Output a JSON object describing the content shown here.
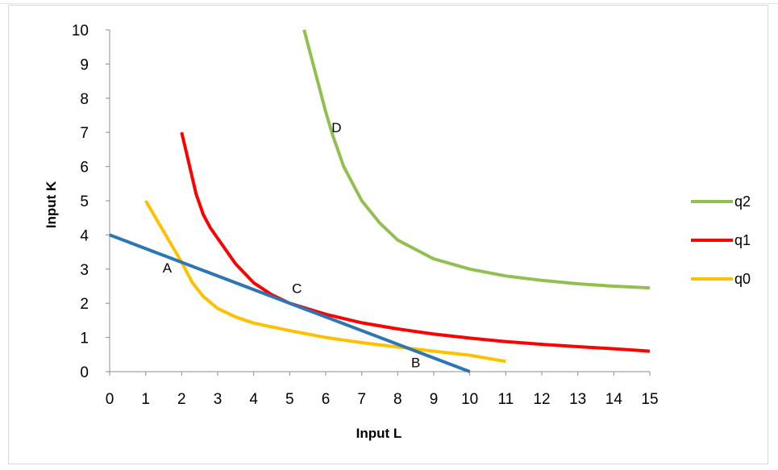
{
  "chart_data": {
    "type": "line",
    "title": "",
    "xlabel": "Input L",
    "ylabel": "Input K",
    "xlim": [
      0,
      15
    ],
    "ylim": [
      0,
      10
    ],
    "x_ticks": [
      "0",
      "1",
      "2",
      "3",
      "4",
      "5",
      "6",
      "7",
      "8",
      "9",
      "10",
      "11",
      "12",
      "13",
      "14",
      "15"
    ],
    "y_ticks": [
      "0",
      "1",
      "2",
      "3",
      "4",
      "5",
      "6",
      "7",
      "8",
      "9",
      "10"
    ],
    "grid": false,
    "legend_position": "right",
    "series": [
      {
        "name": "q2",
        "color": "#92c050",
        "points": [
          [
            5.4,
            10
          ],
          [
            5.6,
            9.2
          ],
          [
            5.8,
            8.4
          ],
          [
            6.0,
            7.6
          ],
          [
            6.2,
            6.9
          ],
          [
            6.5,
            6.0
          ],
          [
            7.0,
            5.0
          ],
          [
            7.5,
            4.35
          ],
          [
            8.0,
            3.85
          ],
          [
            9.0,
            3.3
          ],
          [
            10.0,
            3.0
          ],
          [
            11.0,
            2.8
          ],
          [
            12.0,
            2.67
          ],
          [
            13.0,
            2.57
          ],
          [
            14.0,
            2.5
          ],
          [
            15.0,
            2.45
          ]
        ]
      },
      {
        "name": "q1",
        "color": "#ff0000",
        "points": [
          [
            2.0,
            7.0
          ],
          [
            2.2,
            6.1
          ],
          [
            2.4,
            5.2
          ],
          [
            2.6,
            4.6
          ],
          [
            2.8,
            4.2
          ],
          [
            3.0,
            3.9
          ],
          [
            3.5,
            3.15
          ],
          [
            4.0,
            2.6
          ],
          [
            4.5,
            2.25
          ],
          [
            5.0,
            2.0
          ],
          [
            6.0,
            1.68
          ],
          [
            7.0,
            1.43
          ],
          [
            8.0,
            1.25
          ],
          [
            9.0,
            1.1
          ],
          [
            10.0,
            0.98
          ],
          [
            11.0,
            0.88
          ],
          [
            12.0,
            0.8
          ],
          [
            13.0,
            0.73
          ],
          [
            14.0,
            0.67
          ],
          [
            15.0,
            0.6
          ]
        ]
      },
      {
        "name": "q0",
        "color": "#ffc000",
        "points": [
          [
            1.0,
            5.0
          ],
          [
            1.5,
            4.1
          ],
          [
            2.0,
            3.2
          ],
          [
            2.3,
            2.6
          ],
          [
            2.6,
            2.2
          ],
          [
            3.0,
            1.85
          ],
          [
            3.5,
            1.6
          ],
          [
            4.0,
            1.42
          ],
          [
            5.0,
            1.2
          ],
          [
            6.0,
            1.0
          ],
          [
            7.0,
            0.85
          ],
          [
            8.0,
            0.72
          ],
          [
            9.0,
            0.6
          ],
          [
            10.0,
            0.48
          ],
          [
            11.0,
            0.3
          ]
        ]
      },
      {
        "name": "",
        "color": "#2e75b6",
        "points": [
          [
            0,
            4
          ],
          [
            10,
            0
          ]
        ]
      }
    ],
    "annotations": [
      {
        "text": "A",
        "x": 1.6,
        "y": 2.9
      },
      {
        "text": "B",
        "x": 8.5,
        "y": 0.13
      },
      {
        "text": "C",
        "x": 5.2,
        "y": 2.3
      },
      {
        "text": "D",
        "x": 6.3,
        "y": 7.0
      }
    ]
  }
}
